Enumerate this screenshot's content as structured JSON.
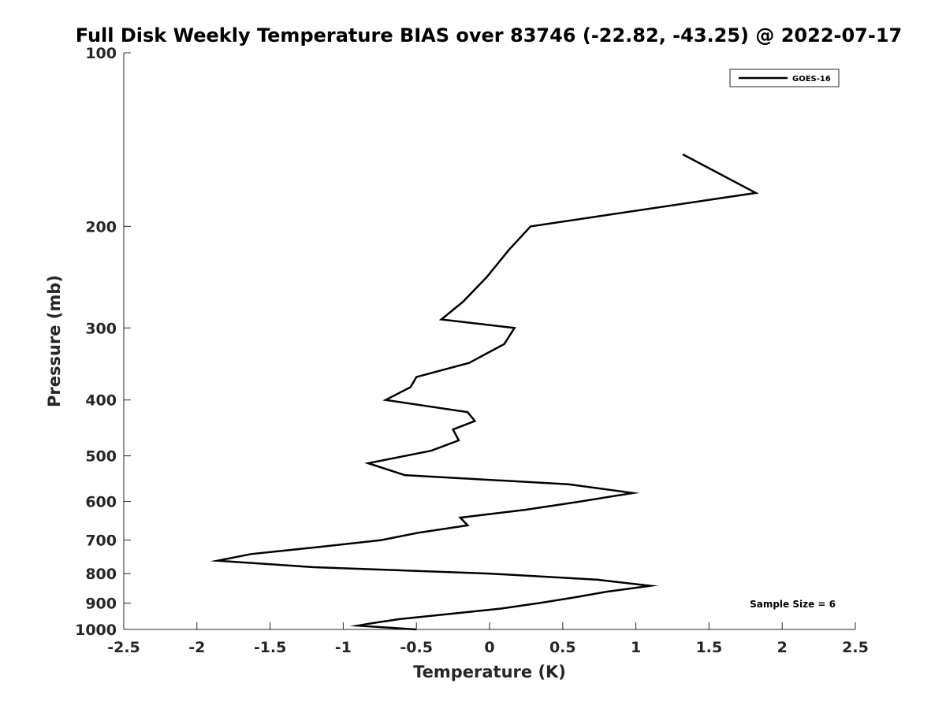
{
  "chart_data": {
    "type": "line",
    "title": "Full Disk Weekly Temperature BIAS over 83746 (-22.82, -43.25) @ 2022-07-17",
    "xlabel": "Temperature (K)",
    "ylabel": "Pressure (mb)",
    "xlim": [
      -2.5,
      2.5
    ],
    "ylim": [
      100,
      1000
    ],
    "y_scale": "log",
    "y_reversed": true,
    "grid": false,
    "x_ticks": [
      -2.5,
      -2,
      -1.5,
      -1,
      -0.5,
      0,
      0.5,
      1,
      1.5,
      2,
      2.5
    ],
    "x_tick_labels": [
      "-2.5",
      "-2",
      "-1.5",
      "-1",
      "-0.5",
      "0",
      "0.5",
      "1",
      "1.5",
      "2",
      "2.5"
    ],
    "y_ticks": [
      100,
      200,
      300,
      400,
      500,
      600,
      700,
      800,
      900,
      1000
    ],
    "y_tick_labels": [
      "100",
      "200",
      "300",
      "400",
      "500",
      "600",
      "700",
      "800",
      "900",
      "1000"
    ],
    "legend_position": "top-right",
    "annotation": "Sample Size = 6",
    "series": [
      {
        "name": "GOES-16",
        "color": "#000000",
        "points": [
          {
            "x": 1.32,
            "y": 150
          },
          {
            "x": 1.82,
            "y": 175
          },
          {
            "x": 0.28,
            "y": 200
          },
          {
            "x": 0.13,
            "y": 220
          },
          {
            "x": -0.02,
            "y": 245
          },
          {
            "x": -0.18,
            "y": 270
          },
          {
            "x": -0.33,
            "y": 290
          },
          {
            "x": 0.17,
            "y": 300
          },
          {
            "x": 0.1,
            "y": 320
          },
          {
            "x": -0.14,
            "y": 345
          },
          {
            "x": -0.5,
            "y": 365
          },
          {
            "x": -0.54,
            "y": 380
          },
          {
            "x": -0.71,
            "y": 400
          },
          {
            "x": -0.15,
            "y": 420
          },
          {
            "x": -0.1,
            "y": 435
          },
          {
            "x": -0.25,
            "y": 450
          },
          {
            "x": -0.21,
            "y": 470
          },
          {
            "x": -0.4,
            "y": 490
          },
          {
            "x": -0.83,
            "y": 515
          },
          {
            "x": -0.58,
            "y": 540
          },
          {
            "x": 0.54,
            "y": 560
          },
          {
            "x": 0.98,
            "y": 580
          },
          {
            "x": 0.62,
            "y": 600
          },
          {
            "x": 0.25,
            "y": 620
          },
          {
            "x": -0.2,
            "y": 640
          },
          {
            "x": -0.15,
            "y": 660
          },
          {
            "x": -0.49,
            "y": 680
          },
          {
            "x": -0.74,
            "y": 700
          },
          {
            "x": -1.18,
            "y": 720
          },
          {
            "x": -1.63,
            "y": 740
          },
          {
            "x": -1.86,
            "y": 760
          },
          {
            "x": -1.2,
            "y": 780
          },
          {
            "x": 0.0,
            "y": 800
          },
          {
            "x": 0.74,
            "y": 820
          },
          {
            "x": 1.1,
            "y": 840
          },
          {
            "x": 0.8,
            "y": 860
          },
          {
            "x": 0.58,
            "y": 880
          },
          {
            "x": 0.34,
            "y": 900
          },
          {
            "x": 0.08,
            "y": 920
          },
          {
            "x": -0.27,
            "y": 940
          },
          {
            "x": -0.62,
            "y": 960
          },
          {
            "x": -0.8,
            "y": 975
          },
          {
            "x": -0.9,
            "y": 985
          },
          {
            "x": -0.5,
            "y": 1000
          }
        ]
      }
    ]
  }
}
